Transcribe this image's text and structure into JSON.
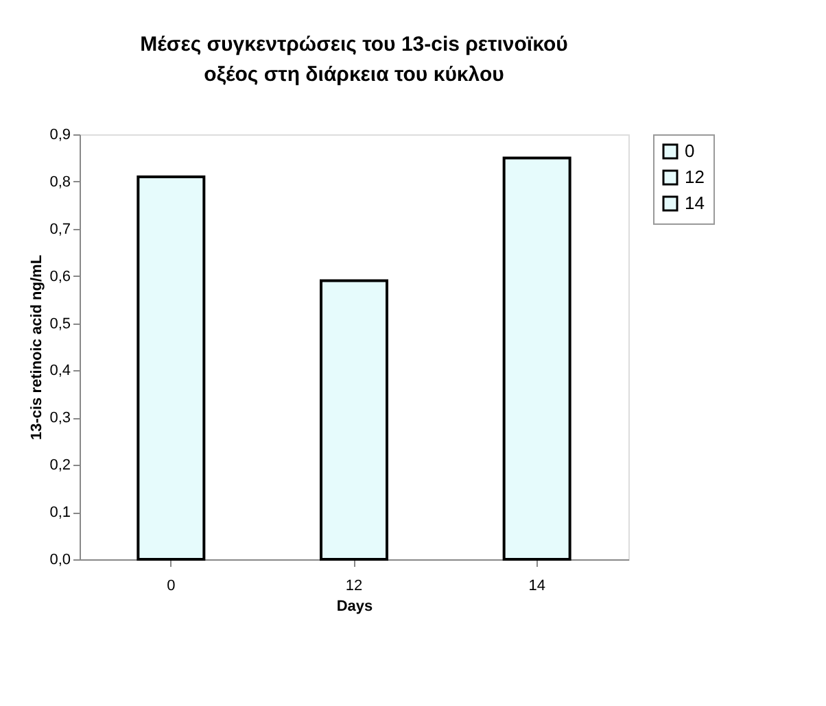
{
  "chart_data": {
    "type": "bar",
    "title": "Μέσες συγκεντρώσεις του  13-cis ρετινοϊκού οξέος στη διάρκεια του κύκλου",
    "xlabel": "Days",
    "ylabel": "13-cis retinoic acid ng/mL",
    "categories": [
      "0",
      "12",
      "14"
    ],
    "series": [
      {
        "name": "0",
        "color": "#e6fbfc",
        "values": [
          0.81,
          null,
          null
        ]
      },
      {
        "name": "12",
        "color": "#e6fbfc",
        "values": [
          null,
          0.59,
          null
        ]
      },
      {
        "name": "14",
        "color": "#e6fbfc",
        "values": [
          null,
          null,
          0.85
        ]
      }
    ],
    "ylim": [
      0,
      0.9
    ],
    "yticks": [
      {
        "value": 0,
        "label": "0,0"
      },
      {
        "value": 0.1,
        "label": "0,1"
      },
      {
        "value": 0.2,
        "label": "0,2"
      },
      {
        "value": 0.3,
        "label": "0,3"
      },
      {
        "value": 0.4,
        "label": "0,4"
      },
      {
        "value": 0.5,
        "label": "0,5"
      },
      {
        "value": 0.6,
        "label": "0,6"
      },
      {
        "value": 0.7,
        "label": "0,7"
      },
      {
        "value": 0.8,
        "label": "0,8"
      },
      {
        "value": 0.9,
        "label": "0,9"
      }
    ],
    "grid": false,
    "legend": "right"
  }
}
